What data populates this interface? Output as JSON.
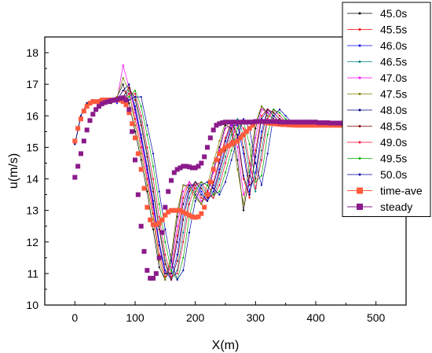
{
  "chart_data": {
    "type": "line",
    "xlabel": "X(m)",
    "ylabel": "u(m/s)",
    "xlim": [
      -50,
      550
    ],
    "ylim": [
      10,
      18.5
    ],
    "xticks": [
      0,
      100,
      200,
      300,
      400,
      500
    ],
    "yticks": [
      10,
      11,
      12,
      13,
      14,
      15,
      16,
      17,
      18
    ],
    "legend_position": "top-right (outside plot area)",
    "x": [
      0,
      10,
      20,
      30,
      40,
      50,
      60,
      70,
      80,
      90,
      100,
      110,
      120,
      130,
      140,
      150,
      160,
      170,
      180,
      190,
      200,
      210,
      220,
      230,
      240,
      250,
      260,
      270,
      280,
      290,
      300,
      310,
      320,
      330,
      340,
      350,
      360,
      370,
      380,
      390,
      400,
      410,
      420,
      430,
      440,
      450,
      460
    ],
    "series": [
      {
        "name": "45.0s",
        "color": "#000000",
        "marker": "square",
        "values": [
          15.1,
          16.0,
          16.4,
          16.5,
          16.5,
          16.5,
          16.4,
          16.6,
          17.0,
          16.4,
          15.5,
          14.6,
          13.6,
          12.4,
          11.2,
          10.8,
          11.4,
          12.8,
          13.8,
          13.8,
          13.5,
          13.2,
          13.6,
          14.3,
          15.0,
          15.7,
          15.6,
          14.6,
          13.0,
          14.1,
          15.6,
          16.3,
          16.1,
          15.9,
          15.8,
          15.8,
          15.8,
          15.8,
          15.8,
          15.8,
          15.8,
          15.7,
          15.7,
          15.7,
          15.7,
          15.7,
          15.7
        ]
      },
      {
        "name": "45.5s",
        "color": "#ff0000",
        "marker": "circle",
        "values": [
          15.1,
          16.0,
          16.4,
          16.5,
          16.5,
          16.5,
          16.5,
          16.5,
          16.8,
          16.7,
          15.9,
          15.0,
          14.0,
          12.9,
          11.6,
          10.9,
          11.0,
          12.2,
          13.4,
          13.9,
          13.7,
          13.4,
          13.3,
          13.9,
          14.6,
          15.3,
          15.8,
          15.3,
          14.0,
          13.4,
          14.9,
          16.0,
          16.2,
          16.0,
          15.8,
          15.8,
          15.8,
          15.8,
          15.8,
          15.8,
          15.8,
          15.7,
          15.7,
          15.7,
          15.7,
          15.7,
          15.7
        ]
      },
      {
        "name": "46.0s",
        "color": "#0000ff",
        "marker": "triangle-up",
        "values": [
          15.1,
          16.0,
          16.4,
          16.5,
          16.5,
          16.5,
          16.5,
          16.4,
          16.6,
          16.9,
          16.3,
          15.4,
          14.4,
          13.3,
          12.0,
          11.1,
          10.8,
          11.6,
          12.9,
          13.7,
          13.9,
          13.6,
          13.3,
          13.6,
          14.3,
          15.0,
          15.7,
          15.7,
          14.8,
          13.6,
          14.2,
          15.5,
          16.2,
          16.1,
          15.9,
          15.8,
          15.8,
          15.8,
          15.8,
          15.8,
          15.8,
          15.7,
          15.7,
          15.7,
          15.7,
          15.7,
          15.7
        ]
      },
      {
        "name": "46.5s",
        "color": "#008080",
        "marker": "triangle-down",
        "values": [
          15.1,
          16.0,
          16.4,
          16.5,
          16.5,
          16.5,
          16.5,
          16.5,
          16.5,
          16.8,
          16.6,
          15.8,
          14.8,
          13.7,
          12.5,
          11.4,
          10.8,
          11.1,
          12.3,
          13.4,
          13.9,
          13.8,
          13.5,
          13.4,
          14.0,
          14.7,
          15.4,
          15.9,
          15.4,
          14.2,
          13.6,
          14.9,
          16.0,
          16.2,
          16.0,
          15.8,
          15.8,
          15.8,
          15.8,
          15.8,
          15.8,
          15.7,
          15.7,
          15.7,
          15.7,
          15.7,
          15.7
        ]
      },
      {
        "name": "47.0s",
        "color": "#ff00ff",
        "marker": "triangle-left",
        "values": [
          15.1,
          16.0,
          16.4,
          16.5,
          16.5,
          16.5,
          16.5,
          16.5,
          17.6,
          16.9,
          16.1,
          15.2,
          14.2,
          13.1,
          11.9,
          11.0,
          11.2,
          12.5,
          13.6,
          13.9,
          13.6,
          13.3,
          13.5,
          14.2,
          14.9,
          15.6,
          15.7,
          15.0,
          13.5,
          13.9,
          15.3,
          16.2,
          16.1,
          15.9,
          15.8,
          15.8,
          15.8,
          15.8,
          15.8,
          15.8,
          15.8,
          15.7,
          15.7,
          15.7,
          15.7,
          15.7,
          15.7
        ]
      },
      {
        "name": "47.5s",
        "color": "#808000",
        "marker": "triangle-right",
        "values": [
          15.1,
          16.0,
          16.4,
          16.5,
          16.5,
          16.5,
          16.5,
          16.6,
          17.2,
          16.8,
          15.7,
          14.8,
          13.8,
          12.7,
          11.4,
          10.8,
          11.6,
          13.0,
          13.8,
          13.7,
          13.4,
          13.2,
          13.8,
          14.5,
          15.2,
          15.8,
          15.5,
          14.3,
          13.2,
          14.5,
          15.8,
          16.3,
          16.0,
          15.9,
          15.8,
          15.8,
          15.8,
          15.8,
          15.8,
          15.8,
          15.8,
          15.7,
          15.7,
          15.7,
          15.7,
          15.7,
          15.7
        ]
      },
      {
        "name": "48.0s",
        "color": "#000080",
        "marker": "diamond",
        "values": [
          15.1,
          16.0,
          16.4,
          16.5,
          16.5,
          16.5,
          16.5,
          16.5,
          16.8,
          17.0,
          16.2,
          15.3,
          14.3,
          13.2,
          11.9,
          11.0,
          11.0,
          12.0,
          13.2,
          13.8,
          13.8,
          13.5,
          13.3,
          13.8,
          14.5,
          15.2,
          15.8,
          15.4,
          14.1,
          13.5,
          14.7,
          15.9,
          16.2,
          16.0,
          15.8,
          15.8,
          15.8,
          15.8,
          15.8,
          15.8,
          15.8,
          15.7,
          15.7,
          15.7,
          15.7,
          15.7,
          15.7
        ]
      },
      {
        "name": "48.5s",
        "color": "#800000",
        "marker": "hexagon",
        "values": [
          15.1,
          16.0,
          16.4,
          16.5,
          16.5,
          16.5,
          16.5,
          16.5,
          16.6,
          16.9,
          16.5,
          15.7,
          14.7,
          13.6,
          12.4,
          11.3,
          10.8,
          11.4,
          12.7,
          13.6,
          13.9,
          13.7,
          13.4,
          13.5,
          14.2,
          14.9,
          15.6,
          15.8,
          15.0,
          13.8,
          14.0,
          15.3,
          16.2,
          16.1,
          15.9,
          15.8,
          15.8,
          15.8,
          15.8,
          15.8,
          15.8,
          15.7,
          15.7,
          15.7,
          15.7,
          15.7,
          15.7
        ]
      },
      {
        "name": "49.0s",
        "color": "#ff0033",
        "marker": "star",
        "values": [
          15.1,
          16.0,
          16.4,
          16.5,
          16.5,
          16.5,
          16.5,
          16.5,
          16.5,
          16.7,
          16.7,
          16.0,
          15.0,
          14.0,
          12.8,
          11.6,
          10.9,
          11.0,
          12.0,
          13.2,
          13.8,
          13.9,
          13.6,
          13.4,
          13.8,
          14.5,
          15.2,
          15.8,
          15.6,
          14.5,
          13.7,
          14.6,
          15.9,
          16.2,
          16.0,
          15.8,
          15.8,
          15.8,
          15.8,
          15.8,
          15.8,
          15.7,
          15.7,
          15.7,
          15.7,
          15.7,
          15.7
        ]
      },
      {
        "name": "49.5s",
        "color": "#00aa00",
        "marker": "pentagon",
        "values": [
          15.1,
          16.0,
          16.4,
          16.5,
          16.5,
          16.5,
          16.5,
          16.5,
          16.5,
          16.6,
          16.8,
          16.3,
          15.4,
          14.4,
          13.2,
          12.0,
          11.1,
          10.8,
          11.5,
          12.8,
          13.6,
          13.9,
          13.8,
          13.5,
          13.6,
          14.2,
          14.9,
          15.6,
          15.8,
          15.1,
          13.9,
          14.1,
          15.4,
          16.2,
          16.1,
          15.9,
          15.8,
          15.8,
          15.8,
          15.8,
          15.8,
          15.7,
          15.7,
          15.7,
          15.7,
          15.7,
          15.7
        ]
      },
      {
        "name": "50.0s",
        "color": "#0000aa",
        "marker": "circle-small",
        "values": [
          15.1,
          16.0,
          16.4,
          16.5,
          16.5,
          16.5,
          16.5,
          16.5,
          16.5,
          16.5,
          16.6,
          16.6,
          15.7,
          14.8,
          13.6,
          12.4,
          11.4,
          10.8,
          11.1,
          12.3,
          13.3,
          13.8,
          13.9,
          13.7,
          13.5,
          13.9,
          14.6,
          15.3,
          15.9,
          15.6,
          14.5,
          13.8,
          14.8,
          16.0,
          16.2,
          16.0,
          15.8,
          15.8,
          15.8,
          15.8,
          15.8,
          15.7,
          15.7,
          15.7,
          15.7,
          15.7,
          15.7
        ]
      }
    ],
    "time_ave": {
      "name": "time-ave",
      "color": "#ff5a3c",
      "marker": "square",
      "x": [
        0,
        5,
        10,
        15,
        20,
        25,
        30,
        35,
        40,
        45,
        50,
        55,
        60,
        65,
        70,
        75,
        80,
        85,
        90,
        95,
        100,
        105,
        110,
        115,
        120,
        125,
        130,
        135,
        140,
        145,
        150,
        155,
        160,
        165,
        170,
        175,
        180,
        185,
        190,
        195,
        200,
        205,
        210,
        215,
        220,
        225,
        230,
        235,
        240,
        245,
        250,
        255,
        260,
        265,
        270,
        275,
        280,
        285,
        290,
        295,
        300,
        305,
        310,
        315,
        320,
        325,
        330,
        335,
        340,
        345,
        350,
        355,
        360,
        365,
        370,
        375,
        380,
        385,
        390,
        395,
        400,
        405,
        410,
        415,
        420,
        425,
        430,
        435,
        440,
        445,
        450,
        455,
        460
      ],
      "values": [
        15.2,
        15.6,
        15.9,
        16.15,
        16.3,
        16.4,
        16.45,
        16.45,
        16.45,
        16.5,
        16.5,
        16.5,
        16.5,
        16.5,
        16.5,
        16.5,
        16.45,
        16.35,
        16.1,
        15.75,
        15.3,
        14.8,
        14.3,
        13.7,
        13.1,
        12.7,
        12.55,
        12.55,
        12.6,
        12.7,
        12.85,
        12.95,
        13.0,
        13.0,
        13.0,
        13.0,
        12.95,
        12.9,
        12.85,
        12.8,
        12.78,
        12.8,
        12.9,
        13.1,
        13.5,
        13.9,
        14.3,
        14.6,
        14.8,
        14.9,
        15.0,
        15.05,
        15.1,
        15.15,
        15.2,
        15.3,
        15.4,
        15.5,
        15.6,
        15.7,
        15.8,
        15.82,
        15.82,
        15.8,
        15.78,
        15.76,
        15.75,
        15.74,
        15.73,
        15.72,
        15.72,
        15.71,
        15.71,
        15.7,
        15.7,
        15.7,
        15.7,
        15.7,
        15.7,
        15.7,
        15.7,
        15.7,
        15.7,
        15.7,
        15.7,
        15.7,
        15.7,
        15.7,
        15.7,
        15.7,
        15.7,
        15.7,
        15.7
      ]
    },
    "steady": {
      "name": "steady",
      "color": "#8b1a8b",
      "marker": "square",
      "x": [
        0,
        5,
        10,
        15,
        20,
        25,
        30,
        35,
        40,
        45,
        50,
        55,
        60,
        65,
        70,
        75,
        80,
        85,
        90,
        95,
        100,
        105,
        110,
        115,
        120,
        125,
        130,
        135,
        140,
        145,
        150,
        155,
        160,
        165,
        170,
        175,
        180,
        185,
        190,
        195,
        200,
        205,
        210,
        215,
        220,
        225,
        230,
        235,
        240,
        245,
        250,
        255,
        260,
        265,
        270,
        275,
        280,
        285,
        290,
        295,
        300,
        305,
        310,
        315,
        320,
        325,
        330,
        335,
        340,
        345,
        350,
        355,
        360,
        365,
        370,
        375,
        380,
        385,
        390,
        395,
        400,
        405,
        410,
        415,
        420,
        425,
        430,
        435,
        440,
        445,
        450,
        455,
        460
      ],
      "values": [
        14.05,
        14.4,
        14.8,
        15.2,
        15.55,
        15.85,
        16.05,
        16.2,
        16.3,
        16.38,
        16.42,
        16.45,
        16.48,
        16.5,
        16.52,
        16.55,
        16.57,
        16.5,
        16.2,
        15.5,
        14.6,
        13.5,
        12.5,
        11.7,
        11.1,
        10.85,
        10.85,
        11.0,
        11.5,
        12.3,
        13.1,
        13.6,
        13.95,
        14.2,
        14.3,
        14.35,
        14.4,
        14.4,
        14.38,
        14.35,
        14.35,
        14.4,
        14.5,
        14.7,
        15.0,
        15.3,
        15.55,
        15.7,
        15.75,
        15.78,
        15.8,
        15.8,
        15.8,
        15.8,
        15.8,
        15.8,
        15.8,
        15.8,
        15.8,
        15.8,
        15.82,
        15.82,
        15.82,
        15.82,
        15.82,
        15.82,
        15.82,
        15.82,
        15.8,
        15.8,
        15.8,
        15.8,
        15.8,
        15.8,
        15.8,
        15.8,
        15.8,
        15.8,
        15.8,
        15.8,
        15.8,
        15.78,
        15.78,
        15.78,
        15.78,
        15.77,
        15.77,
        15.77,
        15.77,
        15.76,
        15.76,
        15.76,
        15.76
      ]
    },
    "legend_entries": [
      "45.0s",
      "45.5s",
      "46.0s",
      "46.5s",
      "47.0s",
      "47.5s",
      "48.0s",
      "48.5s",
      "49.0s",
      "49.5s",
      "50.0s",
      "time-ave",
      "steady"
    ]
  }
}
